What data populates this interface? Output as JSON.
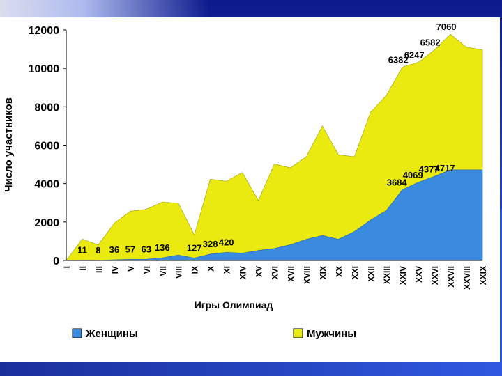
{
  "chart_data": {
    "type": "area",
    "stacked": true,
    "xlabel": "Игры Олимпиад",
    "ylabel": "Число участников",
    "ylim": [
      0,
      12000
    ],
    "yticks": [
      0,
      2000,
      4000,
      6000,
      8000,
      10000,
      12000
    ],
    "grid": false,
    "legend": "bottom",
    "categories": [
      "I",
      "II",
      "III",
      "IV",
      "V",
      "VI",
      "VII",
      "VIII",
      "IX",
      "X",
      "XI",
      "XIV",
      "XV",
      "XVI",
      "XVII",
      "XVIII",
      "XIX",
      "XX",
      "XXI",
      "XXII",
      "XXIII",
      "XXIV",
      "XXV",
      "XXVI",
      "XXVII",
      "XXVIII",
      "XXIX"
    ],
    "series": [
      {
        "name": "Женщины",
        "color": "#3a8ae0",
        "values": [
          0,
          11,
          8,
          36,
          57,
          63,
          136,
          280,
          127,
          328,
          420,
          380,
          520,
          620,
          820,
          1100,
          1300,
          1100,
          1500,
          2100,
          2600,
          3684,
          4069,
          4377,
          4717,
          4717,
          4717
        ],
        "labels": [
          null,
          "11",
          "8",
          "36",
          "57",
          "63",
          "136",
          null,
          "127",
          "328",
          "420",
          null,
          null,
          null,
          null,
          null,
          null,
          null,
          null,
          null,
          null,
          "3684",
          "4069",
          "4377",
          "4717",
          null,
          null
        ]
      },
      {
        "name": "Мужчины",
        "color": "#eaea10",
        "values": [
          0,
          1100,
          800,
          1900,
          2500,
          2600,
          2900,
          2700,
          1200,
          3900,
          3700,
          4200,
          2600,
          4400,
          4000,
          4300,
          5700,
          4400,
          3900,
          5600,
          6000,
          6382,
          6247,
          6582,
          7060,
          6382,
          6247
        ],
        "labels": [
          null,
          null,
          null,
          null,
          null,
          null,
          null,
          null,
          null,
          null,
          null,
          null,
          null,
          null,
          null,
          null,
          null,
          null,
          null,
          null,
          null,
          "6382",
          "6247",
          "6582",
          "7060",
          null,
          null
        ]
      }
    ]
  }
}
